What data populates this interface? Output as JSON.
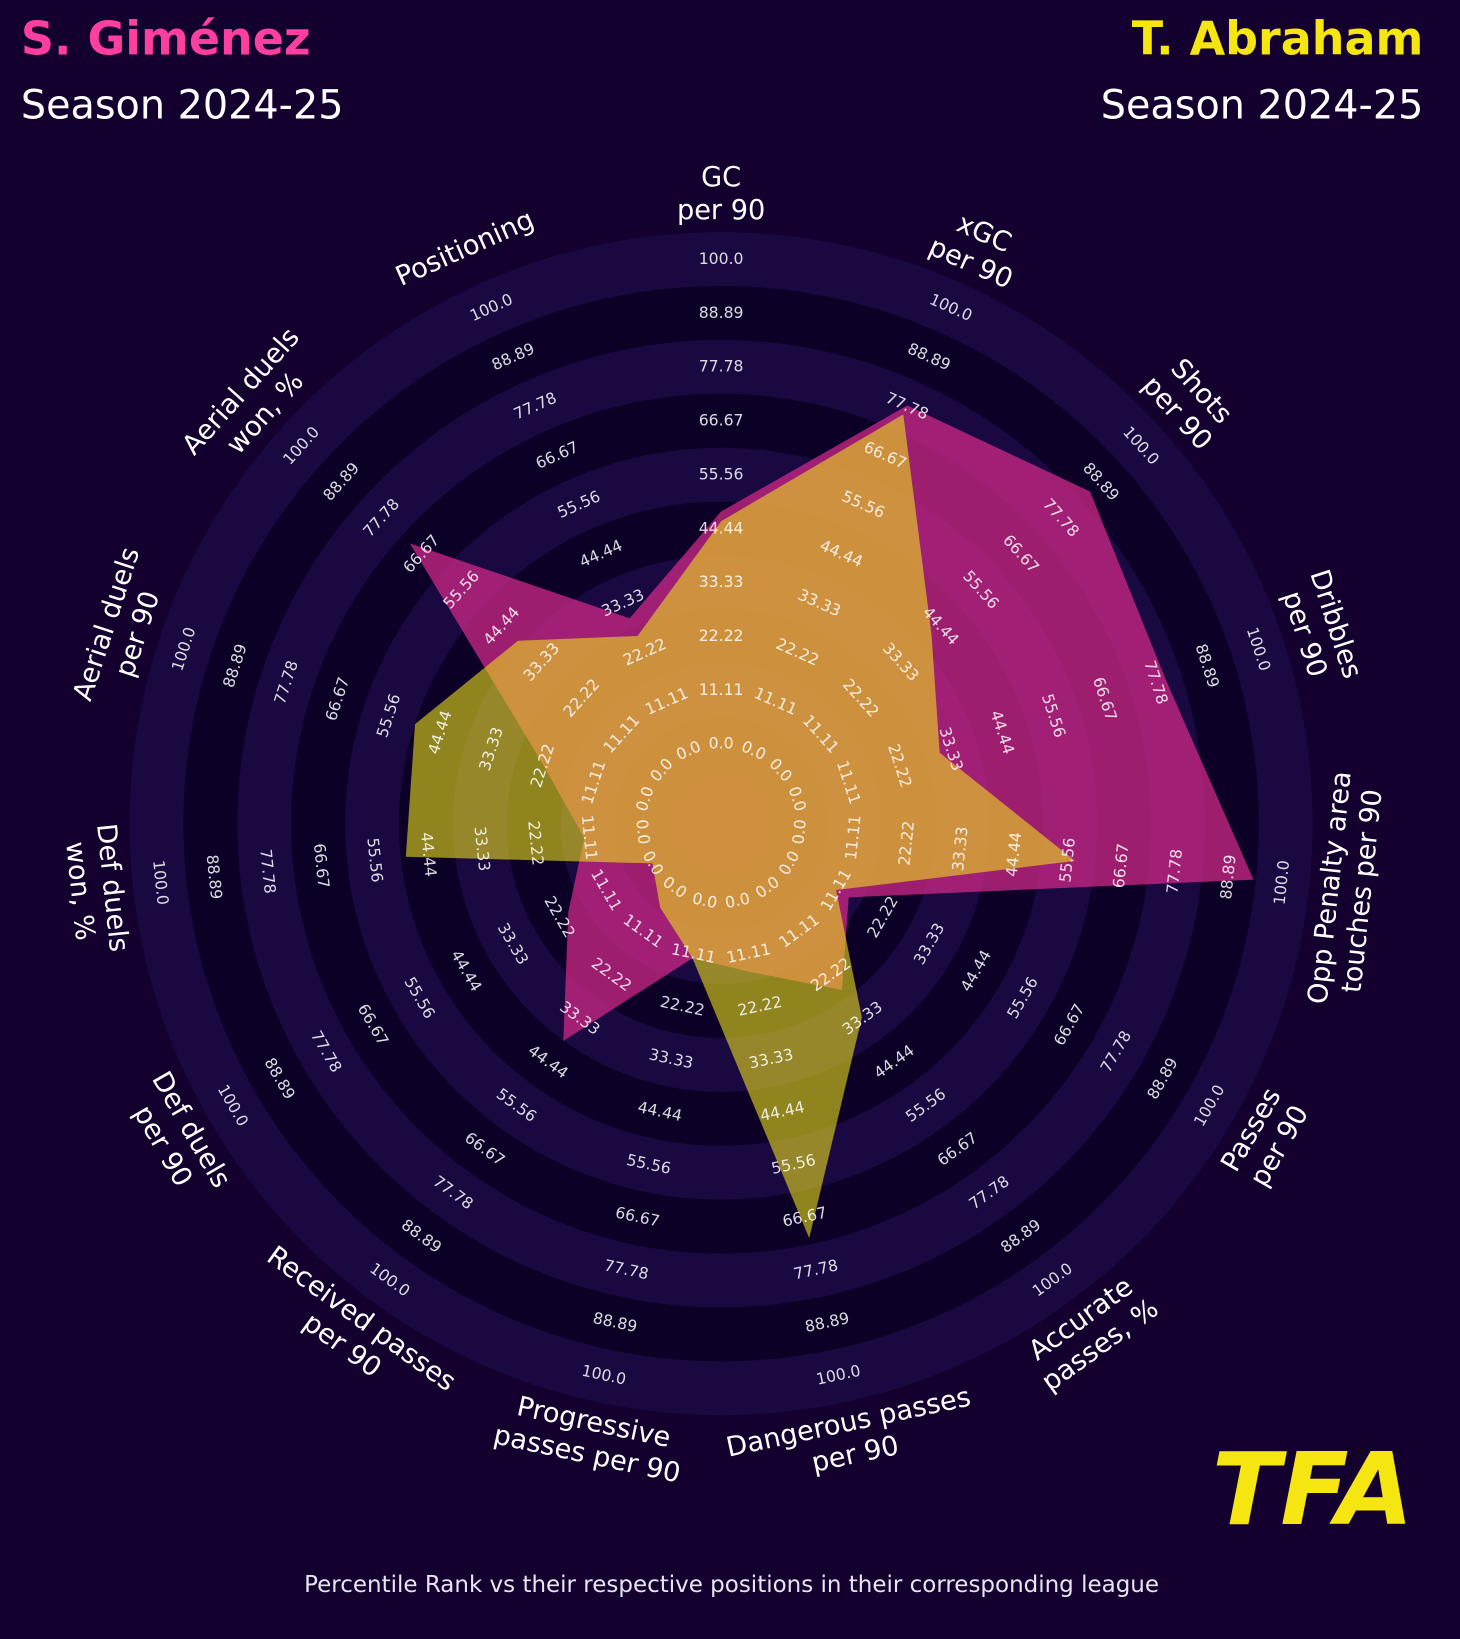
{
  "chart_data": {
    "type": "radar",
    "categories": [
      "GC\nper 90",
      "xGC\nper 90",
      "Shots\nper 90",
      "Dribbles\nper 90",
      "Opp Penalty area\ntouches per 90",
      "Passes\nper 90",
      "Accurate\npasses, %",
      "Dangerous passes\nper 90",
      "Progressive\npasses per 90",
      "Received passes\nper 90",
      "Def duels\nper 90",
      "Def duels\nwon, %",
      "Aerial duels\nper 90",
      "Aerial duels\nwon, %",
      "Positioning"
    ],
    "series": [
      {
        "name": "S. Giménez",
        "season": "Season 2024-25",
        "color": "#d62a8a",
        "values": [
          48,
          78,
          86,
          80,
          94,
          14,
          26,
          15,
          12,
          39,
          20,
          12,
          22,
          70,
          30
        ]
      },
      {
        "name": "T. Abraham",
        "season": "Season 2024-25",
        "color": "#f0e41a",
        "values": [
          46,
          76,
          42,
          31,
          57,
          11,
          33,
          71,
          12,
          5,
          0,
          49,
          50,
          40,
          26
        ]
      }
    ],
    "rlim": [
      0,
      100
    ],
    "rticks": [
      {
        "value": 0,
        "label": "0.0"
      },
      11.11,
      22.22,
      33.33,
      44.44,
      55.56,
      66.67,
      77.78,
      88.89,
      {
        "value": 100,
        "label": "100.0"
      }
    ],
    "footnote": "Percentile Rank vs their respective positions in their corresponding league",
    "logo_text": "TFA"
  }
}
